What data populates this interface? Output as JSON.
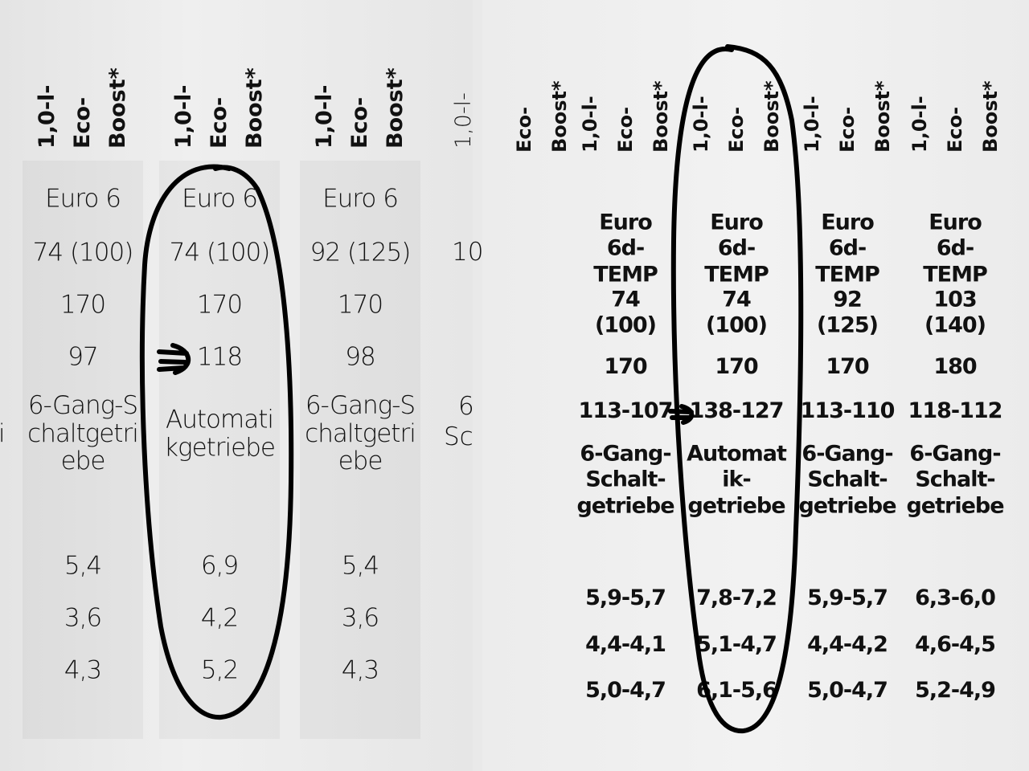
{
  "left": {
    "columns": [
      {
        "header": [
          "1,0-l-",
          "Eco-",
          "Boost*"
        ],
        "cells": [
          "Euro 6",
          "74 (100)",
          "170",
          "97",
          "6-Gang-Schaltgetriebe",
          "5,4",
          "3,6",
          "4,3"
        ]
      },
      {
        "header": [
          "1,0-l-",
          "Eco-",
          "Boost*"
        ],
        "cells": [
          "Euro 6",
          "74 (100)",
          "170",
          "118",
          "Automatikgetriebe",
          "6,9",
          "4,2",
          "5,2"
        ]
      },
      {
        "header": [
          "1,0-l-",
          "Eco-",
          "Boost*"
        ],
        "cells": [
          "Euro 6",
          "92 (125)",
          "170",
          "98",
          "6-Gang-Schaltgetriebe",
          "5,4",
          "3,6",
          "4,3"
        ]
      }
    ],
    "fragments": [
      "i",
      "1,0-l-",
      "10",
      "6",
      "Sc"
    ]
  },
  "right": {
    "partial_header": [
      "Eco-",
      "Boost*"
    ],
    "columns": [
      {
        "header": [
          "1,0-l-",
          "Eco-",
          "Boost*"
        ],
        "cells": [
          "Euro 6d-TEMP",
          "74 (100)",
          "170",
          "113-107",
          "6-Gang-Schalt-getriebe",
          "5,9-5,7",
          "4,4-4,1",
          "5,0-4,7"
        ]
      },
      {
        "header": [
          "1,0-l-",
          "Eco-",
          "Boost*"
        ],
        "cells": [
          "Euro 6d-TEMP",
          "74 (100)",
          "170",
          "138-127",
          "Automatik-getriebe",
          "7,8-7,2",
          "5,1-4,7",
          "6,1-5,6"
        ]
      },
      {
        "header": [
          "1,0-l-",
          "Eco-",
          "Boost*"
        ],
        "cells": [
          "Euro 6d-TEMP",
          "92 (125)",
          "170",
          "113-110",
          "6-Gang-Schalt-getriebe",
          "5,9-5,7",
          "4,4-4,2",
          "5,0-4,7"
        ]
      },
      {
        "header": [
          "1,0-l-",
          "Eco-",
          "Boost*"
        ],
        "cells": [
          "Euro 6d-TEMP",
          "103 (140)",
          "180",
          "118-112",
          "6-Gang-Schalt-getriebe",
          "6,3-6,0",
          "4,6-4,5",
          "5,2-4,9"
        ]
      }
    ]
  }
}
